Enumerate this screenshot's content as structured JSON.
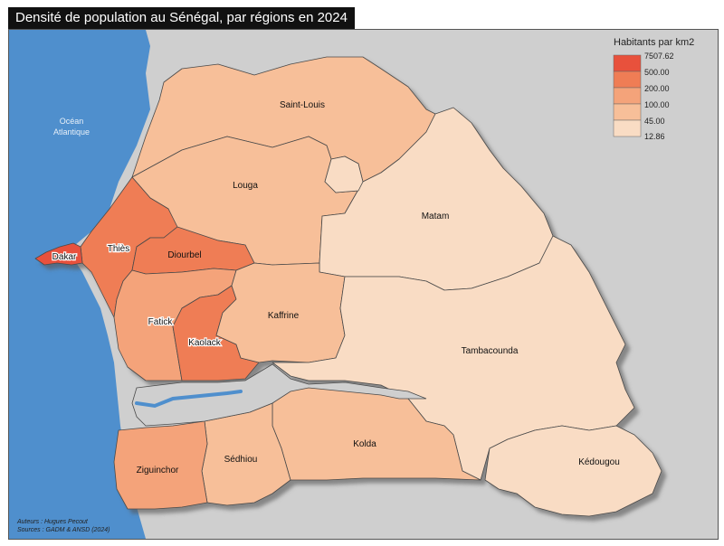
{
  "title": "Densité de population au Sénégal, par régions en 2024",
  "ocean_label": [
    "Océan",
    "Atlantique"
  ],
  "legend": {
    "title": "Habitants par km2",
    "breaks": [
      "7507.62",
      "500.00",
      "200.00",
      "100.00",
      "45.00",
      "12.86"
    ],
    "colors": [
      "#e8513c",
      "#ef7d55",
      "#f4a37a",
      "#f7bf99",
      "#f9dcc4"
    ]
  },
  "regions": {
    "saint_louis": "Saint-Louis",
    "louga": "Louga",
    "matam": "Matam",
    "dakar": "Dakar",
    "thies": "Thiès",
    "diourbel": "Diourbel",
    "fatick": "Fatick",
    "kaolack": "Kaolack",
    "kaffrine": "Kaffrine",
    "tambacounda": "Tambacounda",
    "ziguinchor": "Ziguinchor",
    "sedhiou": "Sédhiou",
    "kolda": "Kolda",
    "kedougou": "Kédougou"
  },
  "credits": {
    "authors": "Auteurs : Hugues Pecout",
    "sources": "Sources : GADM & ANSD (2024)"
  },
  "colors": {
    "ocean": "#4f8fcd",
    "land_outside": "#cfcfcf",
    "river": "#4f8fcd",
    "class_1": "#e8513c",
    "class_2": "#ef7d55",
    "class_3": "#f4a37a",
    "class_4": "#f7bf99",
    "class_5": "#f9dcc4"
  }
}
